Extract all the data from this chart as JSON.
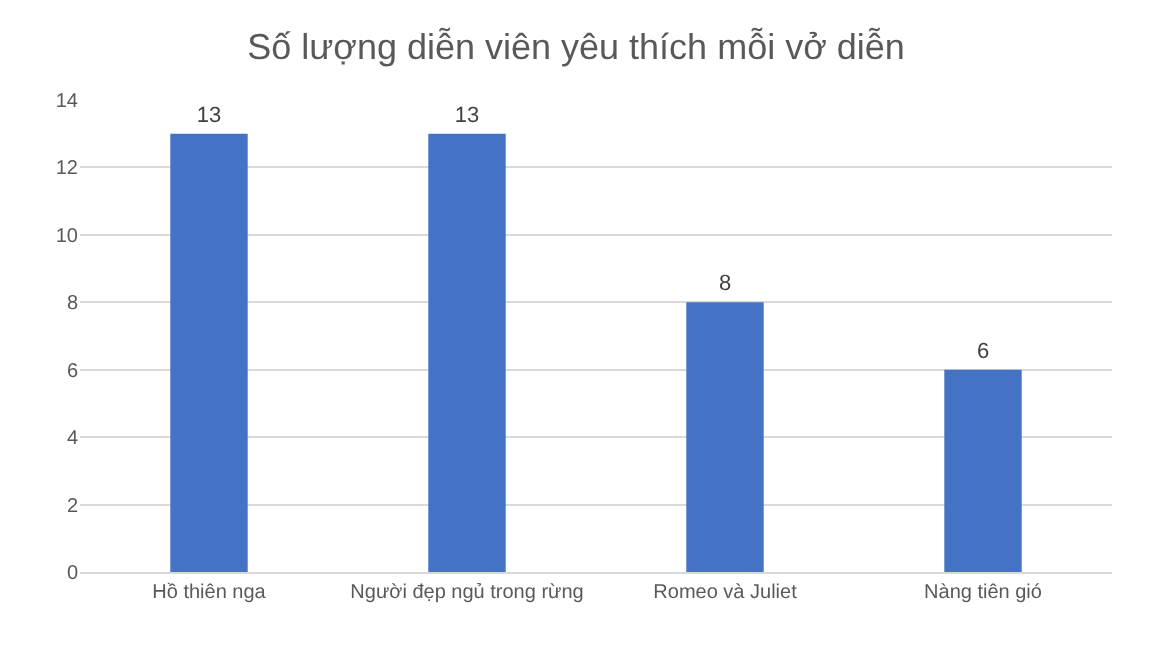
{
  "chart_data": {
    "type": "bar",
    "title": "Số lượng diễn viên yêu thích mỗi vở diễn",
    "categories": [
      "Hồ thiên nga",
      "Người đẹp ngủ trong rừng",
      "Romeo và Juliet",
      "Nàng tiên gió"
    ],
    "values": [
      13,
      13,
      8,
      6
    ],
    "color": "#4472c4",
    "ylim": [
      0,
      14
    ],
    "yticks": [
      0,
      2,
      4,
      6,
      8,
      10,
      12,
      14
    ],
    "grid": "y",
    "data_labels": true
  }
}
